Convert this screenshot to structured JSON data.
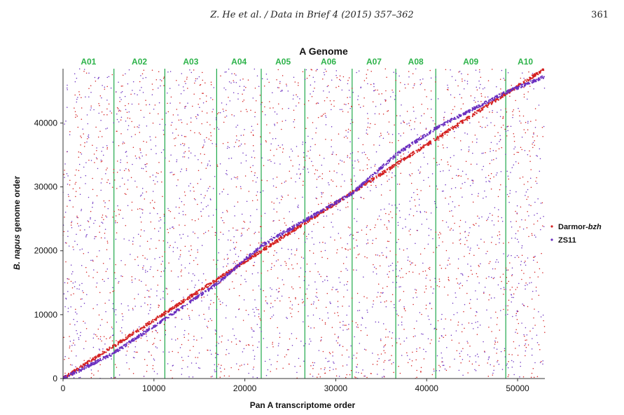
{
  "running_head": "Z. He et al. / Data in Brief 4 (2015) 357–362",
  "page_number": "361",
  "chart_data": {
    "type": "scatter",
    "title": "A Genome",
    "xlabel": "Pan A transcriptome order",
    "ylabel_parts": [
      "B. napus",
      " genome order"
    ],
    "xlim": [
      0,
      53000
    ],
    "ylim": [
      0,
      48500
    ],
    "xticks": [
      0,
      10000,
      20000,
      30000,
      40000,
      50000
    ],
    "yticks": [
      0,
      10000,
      20000,
      30000,
      40000
    ],
    "chromosomes": [
      {
        "label": "A01",
        "start": 0,
        "end": 5600
      },
      {
        "label": "A02",
        "start": 5600,
        "end": 11200
      },
      {
        "label": "A03",
        "start": 11200,
        "end": 16900
      },
      {
        "label": "A04",
        "start": 16900,
        "end": 21800
      },
      {
        "label": "A05",
        "start": 21800,
        "end": 26600
      },
      {
        "label": "A06",
        "start": 26600,
        "end": 31800
      },
      {
        "label": "A07",
        "start": 31800,
        "end": 36600
      },
      {
        "label": "A08",
        "start": 36600,
        "end": 41000
      },
      {
        "label": "A09",
        "start": 41000,
        "end": 48700
      },
      {
        "label": "A10",
        "start": 48700,
        "end": 53000
      }
    ],
    "series": [
      {
        "name_parts": [
          "Darmor-",
          "bzh"
        ],
        "color": "#d42020",
        "diagonal": [
          [
            0,
            0
          ],
          [
            53000,
            48500
          ]
        ]
      },
      {
        "name_parts": [
          "ZS11",
          ""
        ],
        "color": "#6a2fc0",
        "diagonal": [
          [
            0,
            0
          ],
          [
            5600,
            4000
          ],
          [
            16900,
            14800
          ],
          [
            21800,
            20800
          ],
          [
            31800,
            29000
          ],
          [
            36600,
            35000
          ],
          [
            41000,
            39200
          ],
          [
            48700,
            44800
          ],
          [
            53000,
            47300
          ]
        ]
      }
    ],
    "grid": false,
    "legend_position": "right"
  }
}
